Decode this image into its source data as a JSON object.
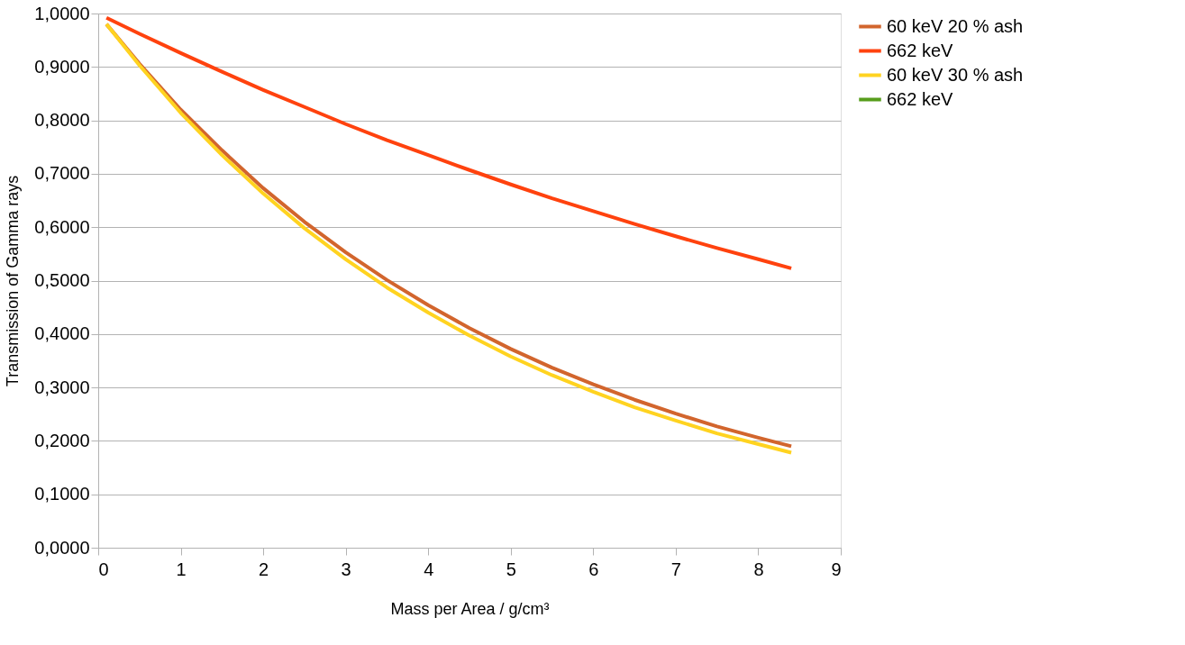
{
  "chart_data": {
    "type": "line",
    "xlabel": "Mass per Area / g/cm³",
    "ylabel": "Transmission of Gamma rays",
    "x": [
      0.1,
      0.5,
      1,
      1.5,
      2,
      2.5,
      3,
      3.5,
      4,
      4.5,
      5,
      5.5,
      6,
      6.5,
      7,
      7.5,
      8,
      8.4
    ],
    "series": [
      {
        "name": "60 keV 20 % ash",
        "color": "#d2652d",
        "values": [
          0.98,
          0.906,
          0.82,
          0.744,
          0.673,
          0.61,
          0.553,
          0.501,
          0.454,
          0.411,
          0.372,
          0.337,
          0.306,
          0.277,
          0.251,
          0.227,
          0.206,
          0.19
        ]
      },
      {
        "name": "662 keV",
        "color": "#ff420e",
        "values": [
          0.992,
          0.962,
          0.926,
          0.891,
          0.857,
          0.825,
          0.793,
          0.763,
          0.735,
          0.707,
          0.68,
          0.654,
          0.63,
          0.606,
          0.583,
          0.561,
          0.54,
          0.523
        ]
      },
      {
        "name": "60 keV 30 % ash",
        "color": "#ffd320",
        "values": [
          0.98,
          0.903,
          0.814,
          0.735,
          0.663,
          0.598,
          0.54,
          0.487,
          0.44,
          0.397,
          0.358,
          0.323,
          0.292,
          0.263,
          0.238,
          0.214,
          0.194,
          0.178
        ]
      },
      {
        "name": "662 keV",
        "color": "#579d1c",
        "values": [
          null,
          null,
          null,
          null,
          null,
          null,
          null,
          null,
          null,
          null,
          null,
          null,
          null,
          null,
          null,
          null,
          null,
          null
        ]
      }
    ],
    "xlim": [
      0,
      9
    ],
    "xticks": [
      0,
      1,
      2,
      3,
      4,
      5,
      6,
      7,
      8,
      9
    ],
    "ylim": [
      0,
      1
    ],
    "yticks": [
      {
        "value": 0,
        "label": "0,0000"
      },
      {
        "value": 0.1,
        "label": "0,1000"
      },
      {
        "value": 0.2,
        "label": "0,2000"
      },
      {
        "value": 0.3,
        "label": "0,3000"
      },
      {
        "value": 0.4,
        "label": "0,4000"
      },
      {
        "value": 0.5,
        "label": "0,5000"
      },
      {
        "value": 0.6,
        "label": "0,6000"
      },
      {
        "value": 0.7,
        "label": "0,7000"
      },
      {
        "value": 0.8,
        "label": "0,8000"
      },
      {
        "value": 0.9,
        "label": "0,9000"
      },
      {
        "value": 1,
        "label": "1,0000"
      }
    ],
    "grid": "y",
    "legend": "right",
    "marker": "none",
    "line_style": "solid"
  }
}
